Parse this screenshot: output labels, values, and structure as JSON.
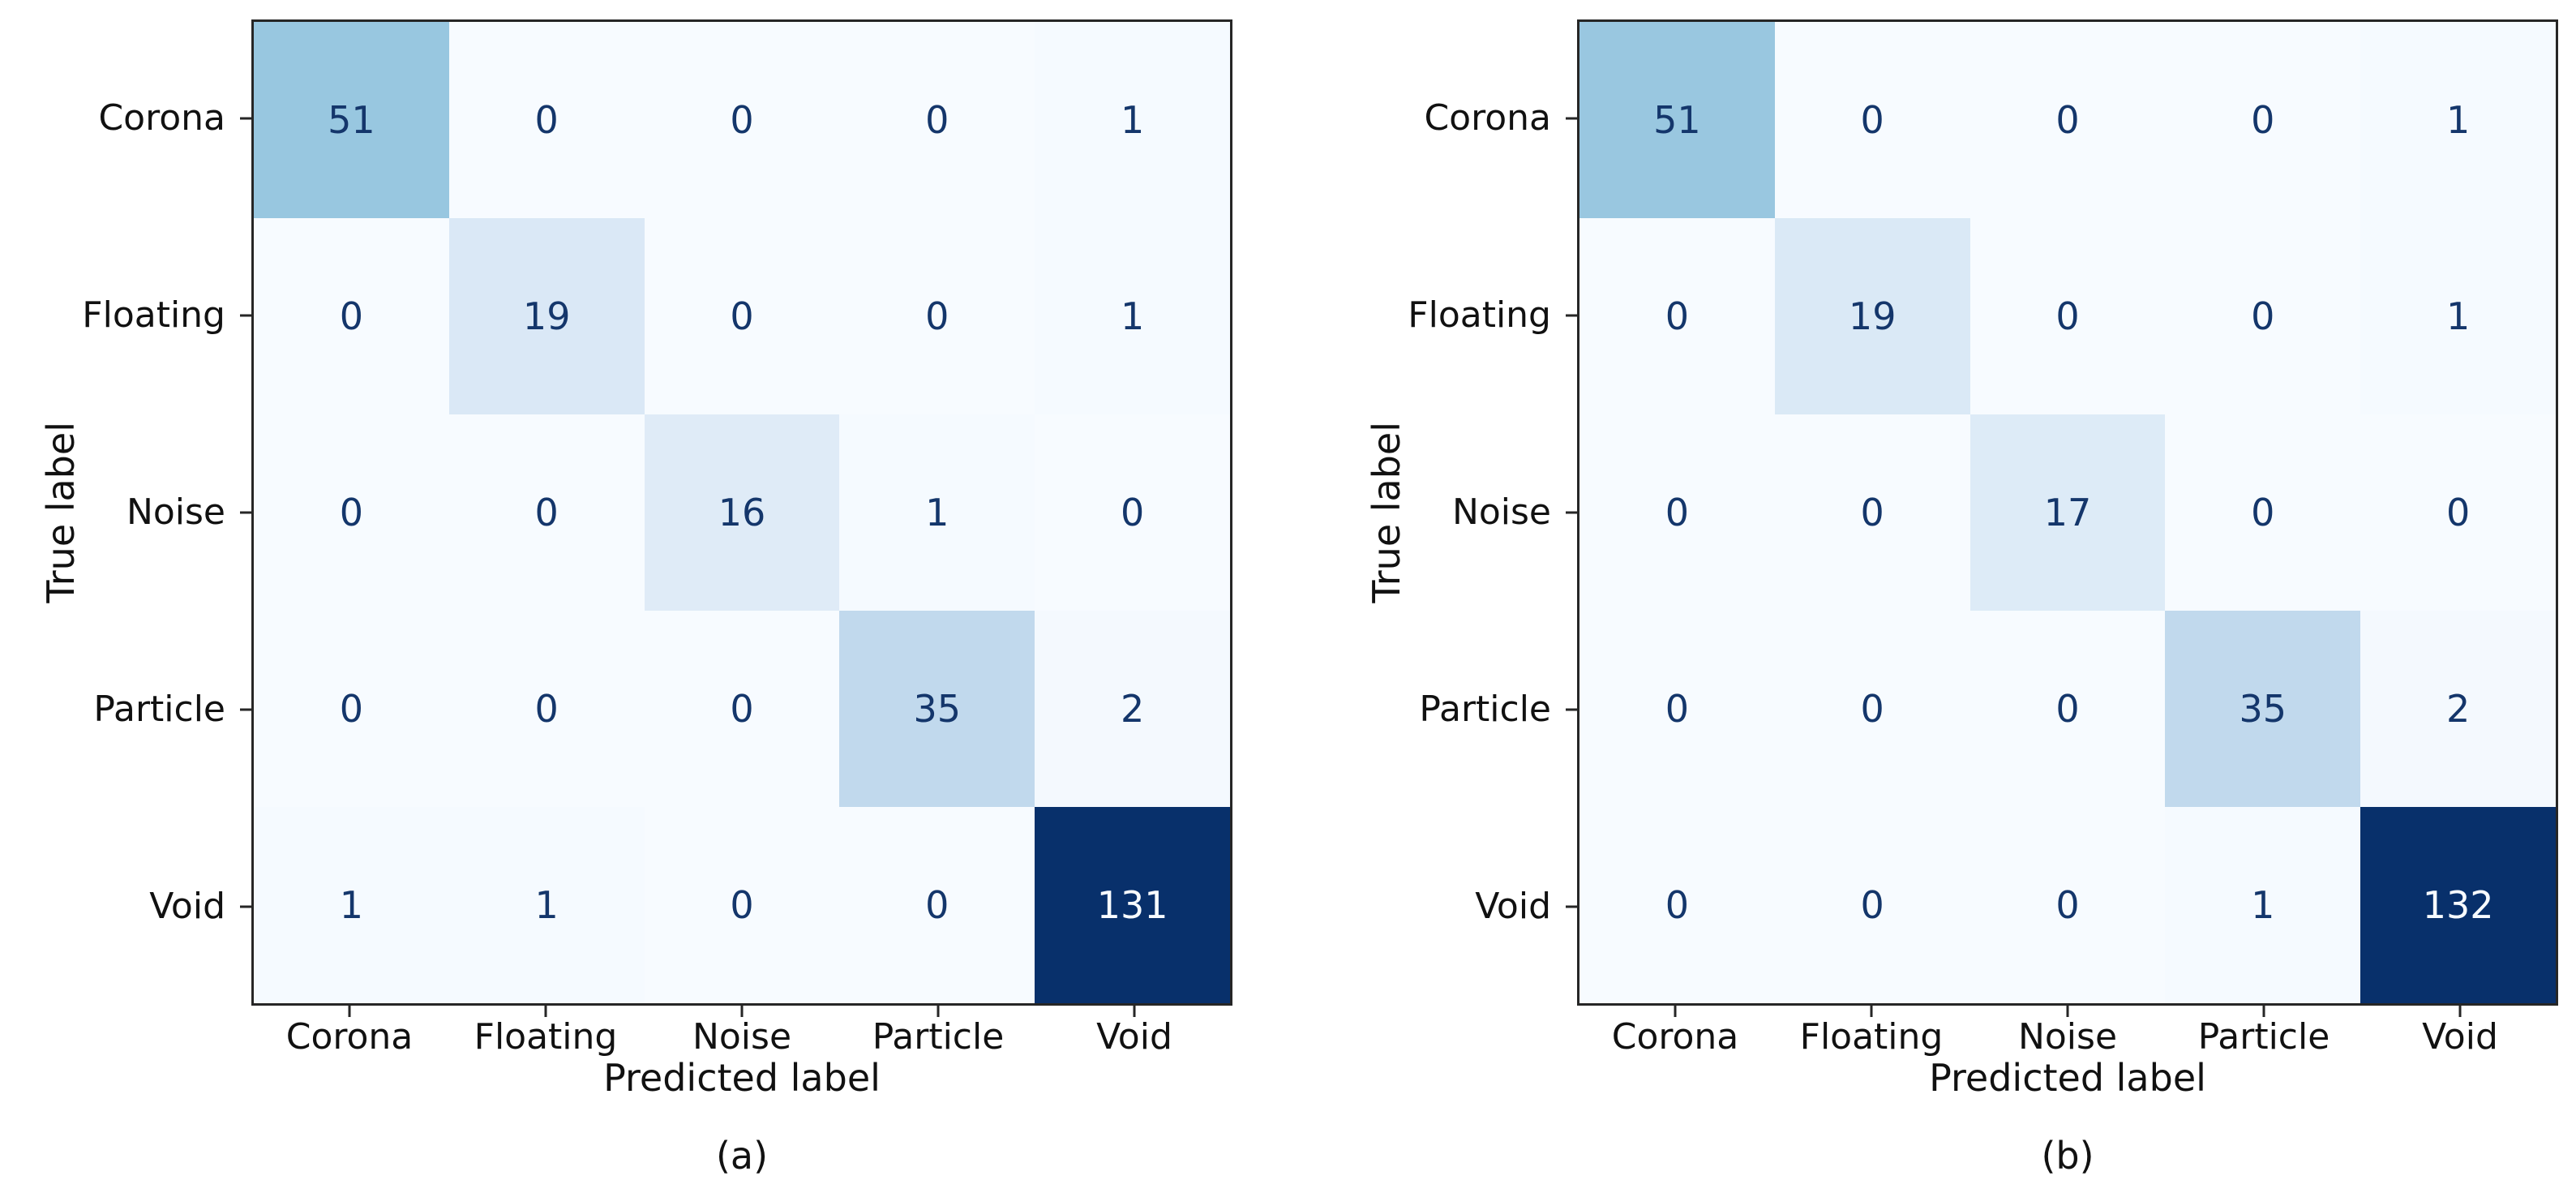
{
  "chart_data": [
    {
      "type": "heatmap",
      "title": "(a)",
      "xlabel": "Predicted label",
      "ylabel": "True label",
      "x_categories": [
        "Corona",
        "Floating",
        "Noise",
        "Particle",
        "Void"
      ],
      "y_categories": [
        "Corona",
        "Floating",
        "Noise",
        "Particle",
        "Void"
      ],
      "values": [
        [
          51,
          0,
          0,
          0,
          1
        ],
        [
          0,
          19,
          0,
          0,
          1
        ],
        [
          0,
          0,
          16,
          1,
          0
        ],
        [
          0,
          0,
          0,
          35,
          2
        ],
        [
          1,
          1,
          0,
          0,
          131
        ]
      ],
      "vmin": 0,
      "vmax": 131,
      "colormap": "Blues",
      "grid": false,
      "legend": "none"
    },
    {
      "type": "heatmap",
      "title": "(b)",
      "xlabel": "Predicted label",
      "ylabel": "True label",
      "x_categories": [
        "Corona",
        "Floating",
        "Noise",
        "Particle",
        "Void"
      ],
      "y_categories": [
        "Corona",
        "Floating",
        "Noise",
        "Particle",
        "Void"
      ],
      "values": [
        [
          51,
          0,
          0,
          0,
          1
        ],
        [
          0,
          19,
          0,
          0,
          1
        ],
        [
          0,
          0,
          17,
          0,
          0
        ],
        [
          0,
          0,
          0,
          35,
          2
        ],
        [
          0,
          0,
          0,
          1,
          132
        ]
      ],
      "vmin": 0,
      "vmax": 132,
      "colormap": "Blues",
      "grid": false,
      "legend": "none"
    }
  ],
  "colors": {
    "background": "#ffffff",
    "cmap_stops": [
      "#f7fbff",
      "#deebf7",
      "#c6dbef",
      "#9ecae1",
      "#6baed6",
      "#4292c6",
      "#2171b5",
      "#08519c",
      "#08306b"
    ],
    "cell_text_dark": "#14366b",
    "cell_text_light": "#f7fbff",
    "spine": "#262626",
    "tick": "#262626",
    "label_text": "#111111"
  }
}
